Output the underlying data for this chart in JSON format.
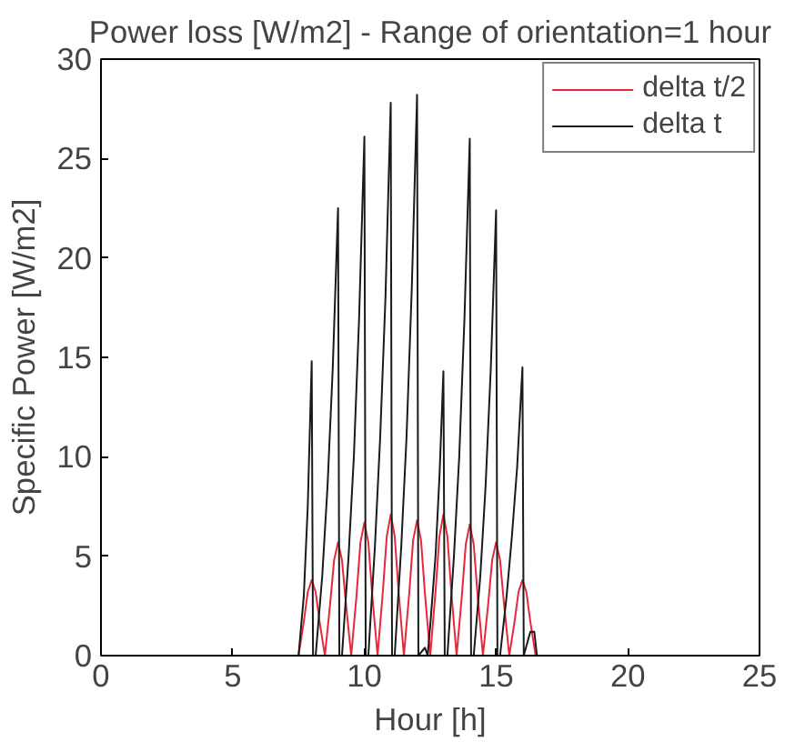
{
  "chart_data": {
    "type": "line",
    "title": "Power loss [W/m2] - Range of orientation=1 hour",
    "xlabel": "Hour [h]",
    "ylabel": "Specific Power [W/m2]",
    "xlim": [
      0,
      25
    ],
    "ylim": [
      0,
      30
    ],
    "xticks": [
      0,
      5,
      10,
      15,
      20,
      25
    ],
    "yticks": [
      0,
      5,
      10,
      15,
      20,
      25,
      30
    ],
    "grid": false,
    "legend": "top right",
    "line_style": "solid",
    "series": [
      {
        "name": "delta t/2",
        "color": "#e8283a",
        "x": [
          0,
          7.5,
          7.7,
          7.85,
          8,
          8.15,
          8.3,
          8.5,
          8.7,
          8.85,
          9,
          9.15,
          9.3,
          9.5,
          9.7,
          9.85,
          10,
          10.15,
          10.3,
          10.5,
          10.7,
          10.85,
          11,
          11.15,
          11.3,
          11.5,
          11.7,
          11.85,
          12,
          12.15,
          12.3,
          12.5,
          12.7,
          12.85,
          13,
          13.15,
          13.3,
          13.5,
          13.7,
          13.85,
          14,
          14.15,
          14.3,
          14.5,
          14.7,
          14.85,
          15,
          15.15,
          15.3,
          15.5,
          15.7,
          15.85,
          16,
          16.15,
          16.3,
          16.5,
          25
        ],
        "values": [
          0,
          0,
          1.7,
          3.2,
          3.8,
          3.2,
          1.7,
          0,
          2.6,
          4.8,
          5.7,
          4.8,
          2.6,
          0,
          3.0,
          5.7,
          6.7,
          5.7,
          3.0,
          0,
          3.2,
          6.0,
          7.1,
          6.0,
          3.2,
          0,
          3.1,
          5.8,
          6.8,
          5.8,
          3.1,
          0,
          3.2,
          6.0,
          7.1,
          6.0,
          3.2,
          0,
          3.0,
          5.6,
          6.6,
          5.6,
          3.0,
          0,
          2.6,
          4.8,
          5.7,
          4.8,
          2.6,
          0,
          1.7,
          3.2,
          3.8,
          3.2,
          1.7,
          0,
          0
        ]
      },
      {
        "name": "delta t",
        "color": "#1a1a1a",
        "x": [
          0,
          7.5,
          7.7,
          7.85,
          8,
          8.05,
          8.15,
          8.4,
          8.6,
          8.8,
          9,
          9.05,
          9.15,
          9.4,
          9.6,
          9.8,
          10,
          10.05,
          10.15,
          10.4,
          10.6,
          10.8,
          11,
          11.05,
          11.15,
          11.4,
          11.6,
          11.8,
          12,
          12.05,
          12.3,
          12.4,
          12.5,
          12.7,
          12.85,
          13,
          13.05,
          13.15,
          13.4,
          13.6,
          13.8,
          14,
          14.05,
          14.15,
          14.4,
          14.6,
          14.8,
          15,
          15.05,
          15.15,
          15.4,
          15.6,
          15.8,
          16,
          16.05,
          16.3,
          16.45,
          16.55,
          25
        ],
        "values": [
          0,
          0,
          3,
          7.5,
          14.8,
          0,
          0,
          4,
          8.5,
          14.5,
          22.5,
          0,
          0,
          5,
          10,
          17,
          26.1,
          0,
          0,
          5.5,
          11,
          18,
          27.8,
          0,
          0,
          5.5,
          11,
          18.5,
          28.2,
          0,
          0.4,
          0,
          1.5,
          5,
          9,
          14.3,
          0,
          0,
          5,
          10,
          17,
          26,
          0,
          0,
          4,
          8.5,
          14.5,
          22.4,
          0,
          0,
          3,
          6,
          9.5,
          14.5,
          0,
          1.2,
          1.2,
          0,
          0
        ]
      }
    ]
  }
}
